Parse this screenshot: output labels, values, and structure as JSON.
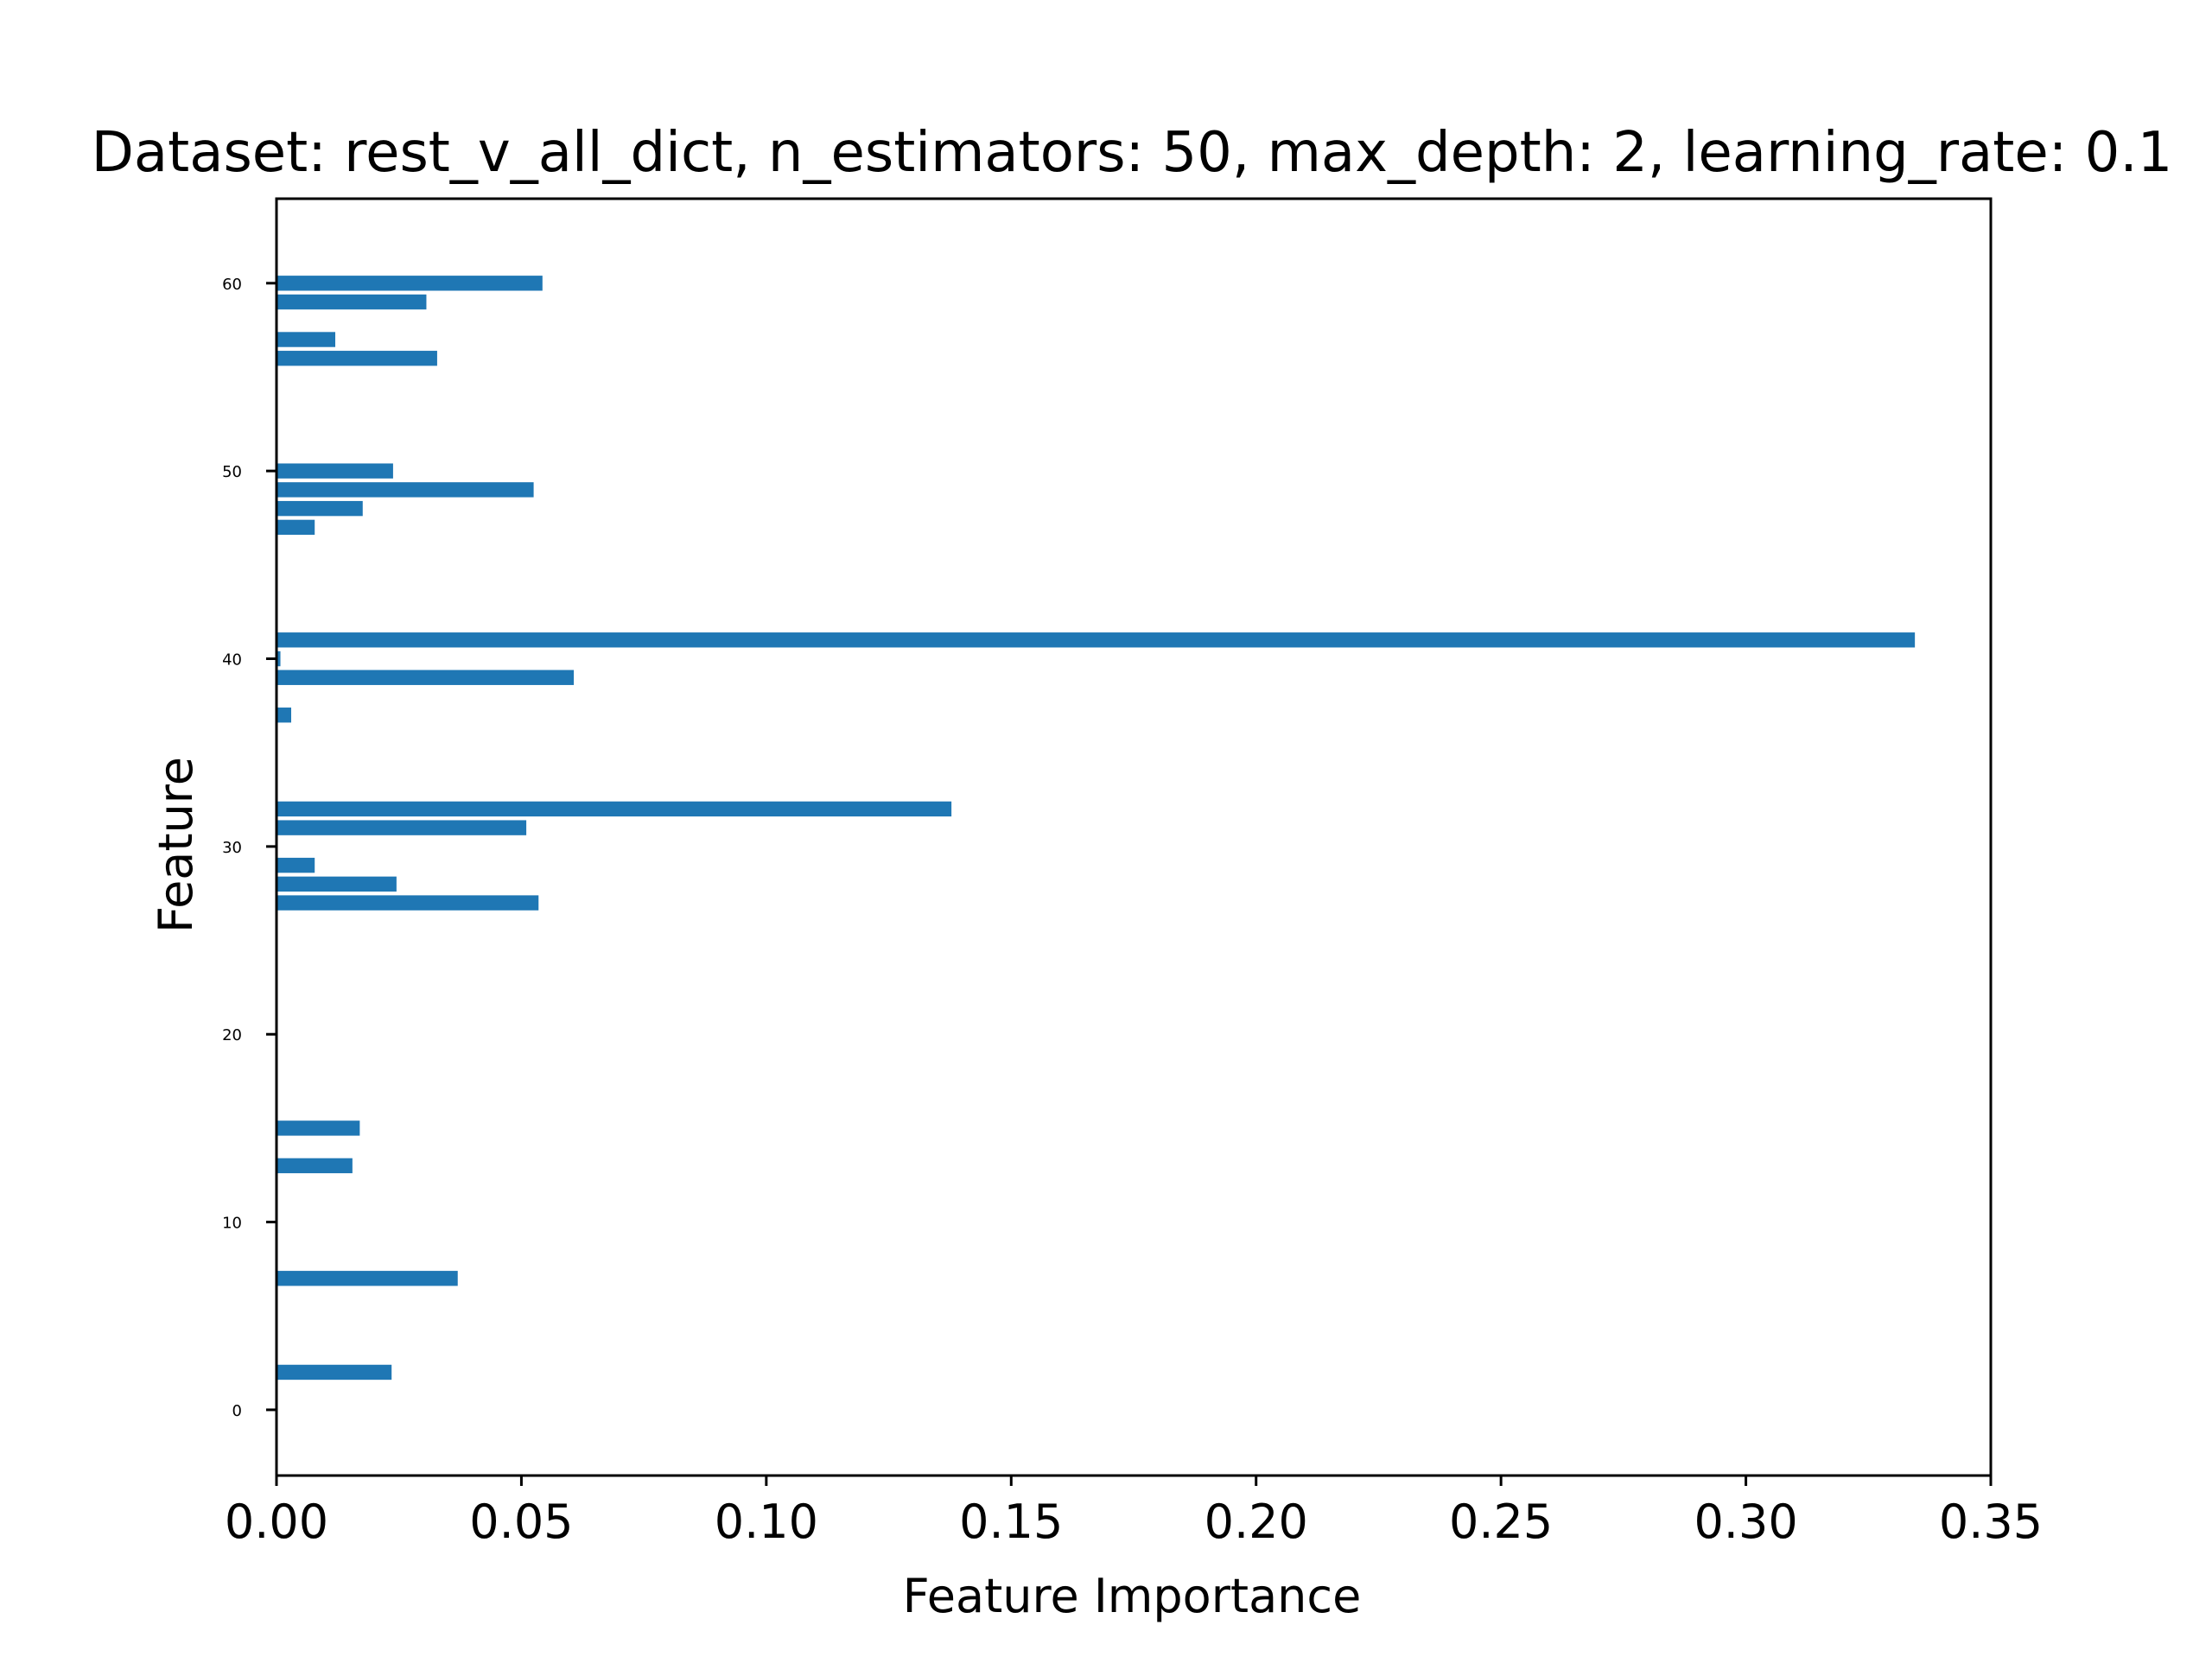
{
  "chart_data": {
    "type": "bar",
    "orientation": "horizontal",
    "title": "Dataset: rest_v_all_dict, n_estimators: 50, max_depth: 2, learning_rate: 0.1",
    "xlabel": "Feature Importance",
    "ylabel": "Feature",
    "xlim": [
      0,
      0.35
    ],
    "ylim": [
      -3.5,
      64.5
    ],
    "xticks": [
      0.0,
      0.05,
      0.1,
      0.15,
      0.2,
      0.25,
      0.3,
      0.35
    ],
    "xtick_labels": [
      "0.00",
      "0.05",
      "0.10",
      "0.15",
      "0.20",
      "0.25",
      "0.30",
      "0.35"
    ],
    "yticks": [
      0,
      10,
      20,
      30,
      40,
      50,
      60
    ],
    "ytick_labels": [
      "0",
      "10",
      "20",
      "30",
      "40",
      "50",
      "60"
    ],
    "grid": false,
    "bar_color": "#1f77b4",
    "features": [
      2,
      7,
      13,
      15,
      27,
      28,
      29,
      31,
      32,
      37,
      39,
      40,
      41,
      47,
      48,
      49,
      50,
      56,
      57,
      59,
      60
    ],
    "values": [
      0.0235,
      0.037,
      0.0155,
      0.017,
      0.0535,
      0.0245,
      0.0078,
      0.051,
      0.1378,
      0.003,
      0.0607,
      0.0008,
      0.3345,
      0.0078,
      0.0176,
      0.0525,
      0.0238,
      0.0328,
      0.012,
      0.0306,
      0.0543
    ]
  }
}
